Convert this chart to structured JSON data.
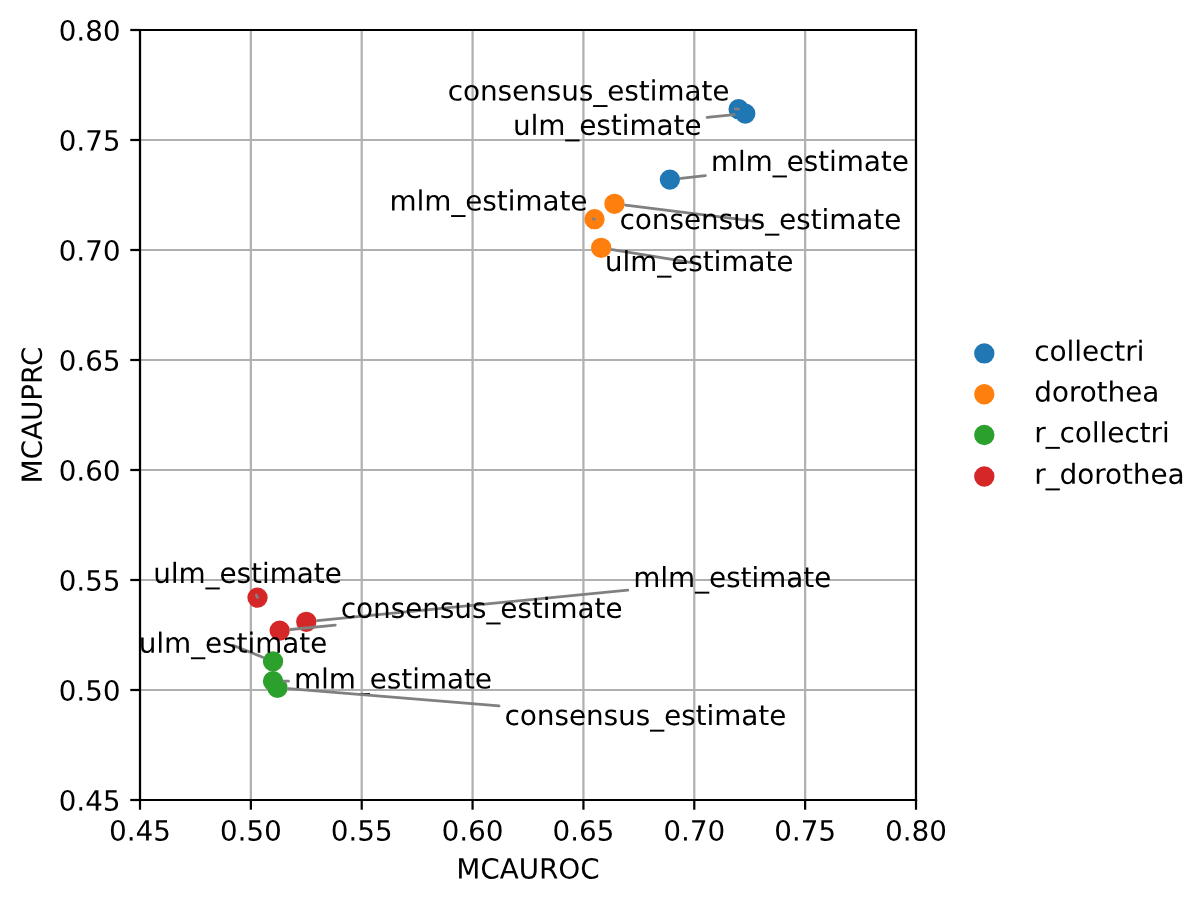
{
  "chart_data": {
    "type": "scatter",
    "xlabel": "MCAUROC",
    "ylabel": "MCAUPRC",
    "xlim": [
      0.45,
      0.8
    ],
    "ylim": [
      0.45,
      0.8
    ],
    "xticks": [
      0.45,
      {
        "value": 0.5,
        "label": "0.50"
      },
      0.55,
      {
        "value": 0.6,
        "label": "0.60"
      },
      0.65,
      {
        "value": 0.7,
        "label": "0.70"
      },
      0.75,
      {
        "value": 0.8,
        "label": "0.80"
      }
    ],
    "yticks": [
      0.45,
      {
        "value": 0.5,
        "label": "0.50"
      },
      0.55,
      {
        "value": 0.6,
        "label": "0.60"
      },
      0.65,
      {
        "value": 0.7,
        "label": "0.70"
      },
      0.75,
      {
        "value": 0.8,
        "label": "0.80"
      }
    ],
    "grid": true,
    "legend": "right",
    "marker": "circle",
    "series": [
      {
        "name": "collectri",
        "color": "#1f77b4",
        "x": [
          0.72,
          0.723,
          0.689
        ],
        "values": [
          0.764,
          0.762,
          0.732
        ]
      },
      {
        "name": "dorothea",
        "color": "#ff7f0e",
        "x": [
          0.664,
          0.655,
          0.658
        ],
        "values": [
          0.721,
          0.714,
          0.701
        ]
      },
      {
        "name": "r_collectri",
        "color": "#2ca02c",
        "x": [
          0.51,
          0.51,
          0.512
        ],
        "values": [
          0.513,
          0.504,
          0.501
        ]
      },
      {
        "name": "r_dorothea",
        "color": "#d62728",
        "x": [
          0.503,
          0.525,
          0.513
        ],
        "values": [
          0.542,
          0.531,
          0.527
        ]
      }
    ],
    "annotations": [
      {
        "text": "consensus_estimate",
        "x": 0.72,
        "y": 0.764
      },
      {
        "text": "ulm_estimate",
        "x": 0.723,
        "y": 0.762
      },
      {
        "text": "mlm_estimate",
        "x": 0.689,
        "y": 0.732
      },
      {
        "text": "consensus_estimate",
        "x": 0.664,
        "y": 0.721
      },
      {
        "text": "mlm_estimate",
        "x": 0.655,
        "y": 0.714
      },
      {
        "text": "ulm_estimate",
        "x": 0.658,
        "y": 0.701
      },
      {
        "text": "ulm_estimate",
        "x": 0.51,
        "y": 0.513
      },
      {
        "text": "mlm_estimate",
        "x": 0.51,
        "y": 0.504
      },
      {
        "text": "consensus_estimate",
        "x": 0.512,
        "y": 0.501
      },
      {
        "text": "ulm_estimate",
        "x": 0.503,
        "y": 0.542
      },
      {
        "text": "mlm_estimate",
        "x": 0.525,
        "y": 0.531
      },
      {
        "text": "consensus_estimate",
        "x": 0.513,
        "y": 0.527
      }
    ]
  }
}
